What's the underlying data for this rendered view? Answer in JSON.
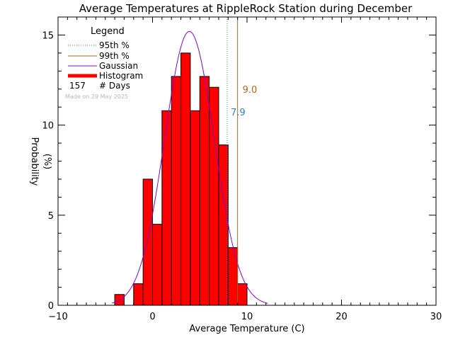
{
  "chart_data": {
    "type": "bar",
    "title": "Average Temperatures at RippleRock Station during December",
    "xlabel": "Average Temperature (C)",
    "ylabel": "Probability",
    "ylabel_unit": "(%)",
    "xlim": [
      -10,
      30
    ],
    "ylim": [
      0,
      16
    ],
    "xticks": [
      -10,
      0,
      10,
      20,
      30
    ],
    "yticks": [
      0,
      5,
      10,
      15
    ],
    "bin_width": 1,
    "bins": [
      {
        "x0": -4,
        "value": 0.6
      },
      {
        "x0": -2,
        "value": 1.2
      },
      {
        "x0": -1,
        "value": 7.0
      },
      {
        "x0": 0,
        "value": 4.5
      },
      {
        "x0": 1,
        "value": 10.8
      },
      {
        "x0": 2,
        "value": 12.7
      },
      {
        "x0": 3,
        "value": 14.0
      },
      {
        "x0": 4,
        "value": 10.8
      },
      {
        "x0": 5,
        "value": 12.7
      },
      {
        "x0": 6,
        "value": 12.1
      },
      {
        "x0": 7,
        "value": 8.9
      },
      {
        "x0": 8,
        "value": 3.2
      },
      {
        "x0": 9,
        "value": 1.2
      }
    ],
    "gaussian": {
      "mean": 3.9,
      "sd": 2.63,
      "peak": 15.2,
      "color": "#8c00d4"
    },
    "percentile_95": {
      "value": 7.9,
      "label": "7.9",
      "color": "#2e86c1"
    },
    "percentile_99": {
      "value": 9.0,
      "label": "9.0",
      "color": "#b5651d"
    },
    "histogram_color": "#ff0000",
    "legend": {
      "title": "Legend",
      "entries": [
        {
          "label": "95th %",
          "style": "dotted",
          "color": "#2e86c1"
        },
        {
          "label": "99th %",
          "style": "solid",
          "color": "#b5651d"
        },
        {
          "label": "Gaussian",
          "style": "solid",
          "color": "#8c00d4"
        },
        {
          "label": "Histogram",
          "style": "thick",
          "color": "#ff0000"
        }
      ],
      "days_count": "157",
      "days_label": "# Days",
      "note": "Made on 29 May 2025",
      "position": "top-left"
    }
  }
}
